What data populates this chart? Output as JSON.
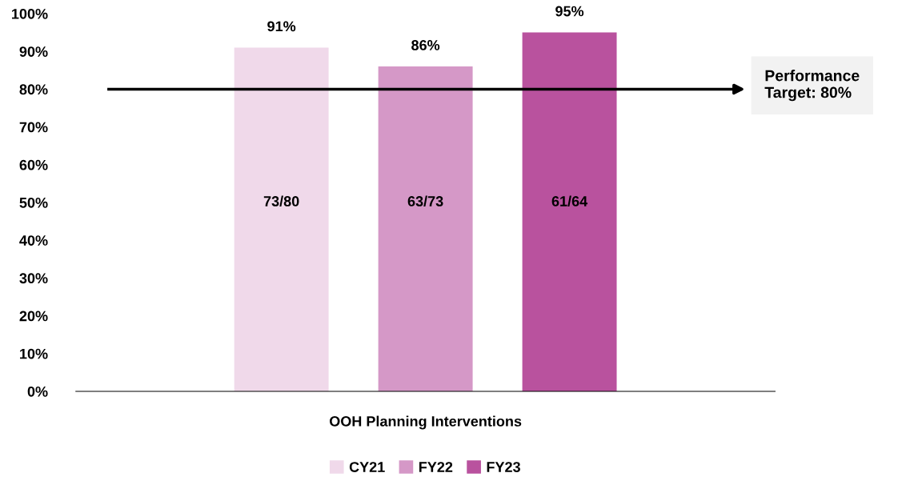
{
  "chart_data": {
    "type": "bar",
    "categories": [
      "OOH Planning Interventions"
    ],
    "series": [
      {
        "name": "CY21",
        "color": "#f0d9ea",
        "values": [
          91
        ],
        "value_labels": [
          "91%"
        ]
      },
      {
        "name": "FY22",
        "color": "#d598c7",
        "values": [
          86
        ],
        "value_labels": [
          "86%"
        ]
      },
      {
        "name": "FY23",
        "color": "#b9529e",
        "values": [
          95
        ],
        "value_labels": [
          "95%"
        ]
      }
    ],
    "annotations": [
      "73/80",
      "63/73",
      "61/64"
    ],
    "ylim": [
      0,
      100
    ],
    "yticks": [
      {
        "value": 0,
        "label": "0%"
      },
      {
        "value": 10,
        "label": "10%"
      },
      {
        "value": 20,
        "label": "20%"
      },
      {
        "value": 30,
        "label": "30%"
      },
      {
        "value": 40,
        "label": "40%"
      },
      {
        "value": 50,
        "label": "50%"
      },
      {
        "value": 60,
        "label": "60%"
      },
      {
        "value": 70,
        "label": "70%"
      },
      {
        "value": 80,
        "label": "80%"
      },
      {
        "value": 90,
        "label": "90%"
      },
      {
        "value": 100,
        "label": "100%"
      }
    ],
    "ref_lines": [
      {
        "axis": "y",
        "value": 80,
        "label": "Performance Target: 80%",
        "color": "#000000"
      }
    ],
    "grid": false,
    "legend": "bottom"
  }
}
